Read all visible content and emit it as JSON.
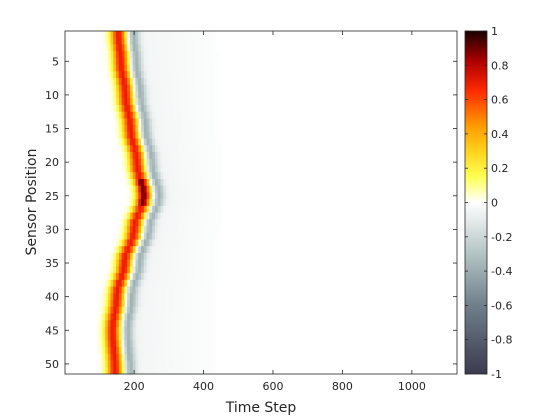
{
  "chart_data": {
    "type": "heatmap",
    "title": "",
    "xlabel": "Time Step",
    "ylabel": "Sensor Position",
    "xlim": [
      1,
      1130
    ],
    "ylim": [
      1,
      51
    ],
    "y_reversed": true,
    "x_ticks": [
      200,
      400,
      600,
      800,
      1000
    ],
    "y_ticks": [
      5,
      10,
      15,
      20,
      25,
      30,
      35,
      40,
      45,
      50
    ],
    "colorbar": {
      "range": [
        -1,
        1
      ],
      "ticks": [
        1,
        0.8,
        0.6,
        0.4,
        0.2,
        0,
        -0.2,
        -0.4,
        -0.6,
        -0.8,
        -1
      ],
      "tick_labels": [
        "1",
        "0.8",
        "0.6",
        "0.4",
        "0.2",
        "0",
        "-0.2",
        "-0.4",
        "-0.6",
        "-0.8",
        "-1"
      ],
      "colormap": [
        {
          "v": -1.0,
          "color": "#3b3b4f"
        },
        {
          "v": -0.6,
          "color": "#6f7f8a"
        },
        {
          "v": -0.3,
          "color": "#b3c4c4"
        },
        {
          "v": 0.0,
          "color": "#ffffff"
        },
        {
          "v": 0.15,
          "color": "#ffff55"
        },
        {
          "v": 0.3,
          "color": "#ffd21a"
        },
        {
          "v": 0.45,
          "color": "#ff9a00"
        },
        {
          "v": 0.65,
          "color": "#ff2a00"
        },
        {
          "v": 0.82,
          "color": "#b00000"
        },
        {
          "v": 1.0,
          "color": "#1a0000"
        }
      ]
    },
    "wavefront": {
      "description_sensor": [
        1,
        5,
        10,
        15,
        20,
        25,
        30,
        35,
        40,
        45,
        51
      ],
      "peak_time": [
        155,
        162,
        175,
        190,
        208,
        228,
        200,
        172,
        150,
        138,
        145
      ],
      "peak_value": 0.7,
      "trailing_negative_value": -0.35,
      "diffuse_tail_value": -0.05,
      "diffuse_tail_end_time": 500
    }
  }
}
